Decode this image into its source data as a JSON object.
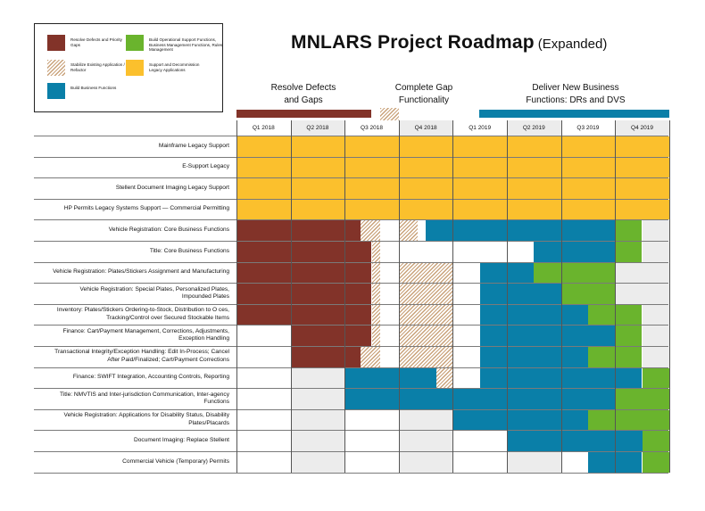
{
  "title": {
    "main": "MNLARS Project Roadmap",
    "sub": "(Expanded)"
  },
  "colors": {
    "resolve": "#823329",
    "stabilize": "#c9a27a",
    "support": "#fbc02d",
    "build_business": "#0a7fa8",
    "build_operational": "#6ab42d",
    "gap": "#ececec",
    "empty": "#ffffff"
  },
  "legend": [
    {
      "icon": "solid",
      "color_key": "resolve",
      "label": "Resolve Defects and Priority Gaps"
    },
    {
      "icon": "solid",
      "color_key": "build_operational",
      "label": "Build Operational Support Functions, Business Management Functions, Rules Management"
    },
    {
      "icon": "hatch",
      "color_key": "stabilize",
      "label": "Stabilize Existing Application / Refactor"
    },
    {
      "icon": "solid",
      "color_key": "support",
      "label": "Support and Decommission Legacy Applications"
    },
    {
      "icon": "solid",
      "color_key": "build_business",
      "label": "Build Business Functions"
    }
  ],
  "phases": [
    {
      "label": "Resolve Defects\nand Gaps",
      "bar": "solid",
      "color_key": "resolve"
    },
    {
      "label": "Complete Gap\nFunctionality",
      "bar": "hatch",
      "color_key": "stabilize"
    },
    {
      "label": "Deliver New Business\nFunctions: DRs and DVS",
      "bar": "solid",
      "color_key": "build_business"
    }
  ],
  "quarters": [
    "Q1 2018",
    "Q2 2018",
    "Q3 2018",
    "Q4 2018",
    "Q1 2019",
    "Q2 2019",
    "Q3 2019",
    "Q4 2019"
  ],
  "quarter_shaded": [
    false,
    true,
    false,
    true,
    false,
    true,
    false,
    true
  ],
  "rows": [
    {
      "label": "Mainframe Legacy Support",
      "segments": [
        [
          "support",
          0,
          8
        ]
      ]
    },
    {
      "label": "E-Support Legacy",
      "segments": [
        [
          "support",
          0,
          8
        ]
      ]
    },
    {
      "label": "Stellent Document Imaging Legacy Support",
      "segments": [
        [
          "support",
          0,
          8
        ]
      ]
    },
    {
      "label": "HP Permits Legacy Systems Support — Commercial Permitting",
      "segments": [
        [
          "support",
          0,
          8
        ]
      ]
    },
    {
      "label": "Vehicle Registration: Core Business Functions",
      "segments": [
        [
          "resolve",
          0,
          2
        ],
        [
          "resolve",
          2,
          2.3
        ],
        [
          "hatch",
          2.3,
          2.65
        ],
        [
          "empty",
          2.65,
          3
        ],
        [
          "hatch",
          3,
          3.35
        ],
        [
          "empty",
          3.35,
          3.5
        ],
        [
          "build_business",
          3.5,
          7
        ],
        [
          "build_operational",
          7,
          7.5
        ],
        [
          "gap",
          7.5,
          8
        ]
      ]
    },
    {
      "label": "Title: Core Business Functions",
      "segments": [
        [
          "resolve",
          0,
          2
        ],
        [
          "resolve",
          2,
          2.5
        ],
        [
          "hatch",
          2.5,
          2.65
        ],
        [
          "empty",
          2.65,
          5.5
        ],
        [
          "build_business",
          5.5,
          7
        ],
        [
          "build_operational",
          7,
          7.5
        ],
        [
          "gap",
          7.5,
          8
        ]
      ]
    },
    {
      "label": "Vehicle Registration: Plates/Stickers Assignment and Manufacturing",
      "segments": [
        [
          "resolve",
          0,
          2
        ],
        [
          "resolve",
          2,
          2.5
        ],
        [
          "hatch",
          2.5,
          2.65
        ],
        [
          "empty",
          2.65,
          3
        ],
        [
          "hatch",
          3,
          4
        ],
        [
          "empty",
          4,
          4.5
        ],
        [
          "build_business",
          4.5,
          5.5
        ],
        [
          "build_operational",
          5.5,
          7
        ],
        [
          "gap",
          7,
          8
        ]
      ]
    },
    {
      "label": "Vehicle Registration: Special Plates, Personalized Plates, Impounded Plates",
      "segments": [
        [
          "resolve",
          0,
          2
        ],
        [
          "resolve",
          2,
          2.5
        ],
        [
          "hatch",
          2.5,
          2.65
        ],
        [
          "empty",
          2.65,
          3
        ],
        [
          "hatch",
          3,
          4
        ],
        [
          "empty",
          4,
          4.5
        ],
        [
          "build_business",
          4.5,
          6
        ],
        [
          "build_operational",
          6,
          7
        ],
        [
          "gap",
          7,
          8
        ]
      ]
    },
    {
      "label": "Inventory: Plates/Stickers Ordering-to-Stock, Distribution to O  ces, Tracking/Control over Secured Stockable Items",
      "segments": [
        [
          "resolve",
          0,
          2
        ],
        [
          "resolve",
          2,
          2.5
        ],
        [
          "hatch",
          2.5,
          2.65
        ],
        [
          "empty",
          2.65,
          3
        ],
        [
          "hatch",
          3,
          4
        ],
        [
          "empty",
          4,
          4.5
        ],
        [
          "build_business",
          4.5,
          6.5
        ],
        [
          "build_operational",
          6.5,
          7.5
        ],
        [
          "gap",
          7.5,
          8
        ]
      ]
    },
    {
      "label": "Finance: Cart/Payment Management, Corrections, Adjustments, Exception Handling",
      "segments": [
        [
          "empty",
          0,
          1
        ],
        [
          "resolve",
          1,
          2
        ],
        [
          "resolve",
          2,
          2.5
        ],
        [
          "hatch",
          2.5,
          2.65
        ],
        [
          "empty",
          2.65,
          3
        ],
        [
          "hatch",
          3,
          4
        ],
        [
          "empty",
          4,
          4.5
        ],
        [
          "build_business",
          4.5,
          7
        ],
        [
          "build_operational",
          7,
          7.5
        ],
        [
          "gap",
          7.5,
          8
        ]
      ]
    },
    {
      "label": "Transactional Integrity/Exception Handling: Edit In-Process; Cancel After Paid/Finalized; Cart/Payment Corrections",
      "segments": [
        [
          "empty",
          0,
          1
        ],
        [
          "resolve",
          1,
          2
        ],
        [
          "resolve",
          2,
          2.3
        ],
        [
          "hatch",
          2.3,
          2.65
        ],
        [
          "empty",
          2.65,
          3
        ],
        [
          "hatch",
          3,
          4
        ],
        [
          "empty",
          4,
          4.5
        ],
        [
          "build_business",
          4.5,
          6.5
        ],
        [
          "build_operational",
          6.5,
          7.5
        ],
        [
          "gap",
          7.5,
          8
        ]
      ]
    },
    {
      "label": "Finance: SWIFT Integration, Accounting Controls, Reporting",
      "segments": [
        [
          "empty",
          0,
          1
        ],
        [
          "gap",
          1,
          2
        ],
        [
          "build_business",
          2,
          3.7
        ],
        [
          "hatch",
          3.7,
          4
        ],
        [
          "empty",
          4,
          4.5
        ],
        [
          "build_business",
          4.5,
          7.5
        ],
        [
          "build_operational",
          7.5,
          8
        ]
      ]
    },
    {
      "label": "Title: NMVTIS and Inter-jurisdiction Communication, Inter-agency Functions",
      "segments": [
        [
          "empty",
          0,
          1
        ],
        [
          "gap",
          1,
          2
        ],
        [
          "build_business",
          2,
          7
        ],
        [
          "build_operational",
          7,
          8
        ]
      ]
    },
    {
      "label": "Vehicle Registration: Applications for Disability Status, Disability Plates/Placards",
      "segments": [
        [
          "empty",
          0,
          1
        ],
        [
          "gap",
          1,
          2
        ],
        [
          "empty",
          2,
          3
        ],
        [
          "gap",
          3,
          4
        ],
        [
          "build_business",
          4,
          6.5
        ],
        [
          "build_operational",
          6.5,
          8
        ]
      ]
    },
    {
      "label": "Document Imaging: Replace Stellent",
      "segments": [
        [
          "empty",
          0,
          1
        ],
        [
          "gap",
          1,
          2
        ],
        [
          "empty",
          2,
          3
        ],
        [
          "gap",
          3,
          4
        ],
        [
          "empty",
          4,
          5
        ],
        [
          "build_business",
          5,
          7.5
        ],
        [
          "build_operational",
          7.5,
          8
        ]
      ]
    },
    {
      "label": "Commercial Vehicle (Temporary) Permits",
      "segments": [
        [
          "empty",
          0,
          1
        ],
        [
          "gap",
          1,
          2
        ],
        [
          "empty",
          2,
          3
        ],
        [
          "gap",
          3,
          4
        ],
        [
          "empty",
          4,
          5
        ],
        [
          "gap",
          5,
          6
        ],
        [
          "empty",
          6,
          6.5
        ],
        [
          "build_business",
          6.5,
          7.5
        ],
        [
          "build_operational",
          7.5,
          8
        ]
      ]
    }
  ]
}
